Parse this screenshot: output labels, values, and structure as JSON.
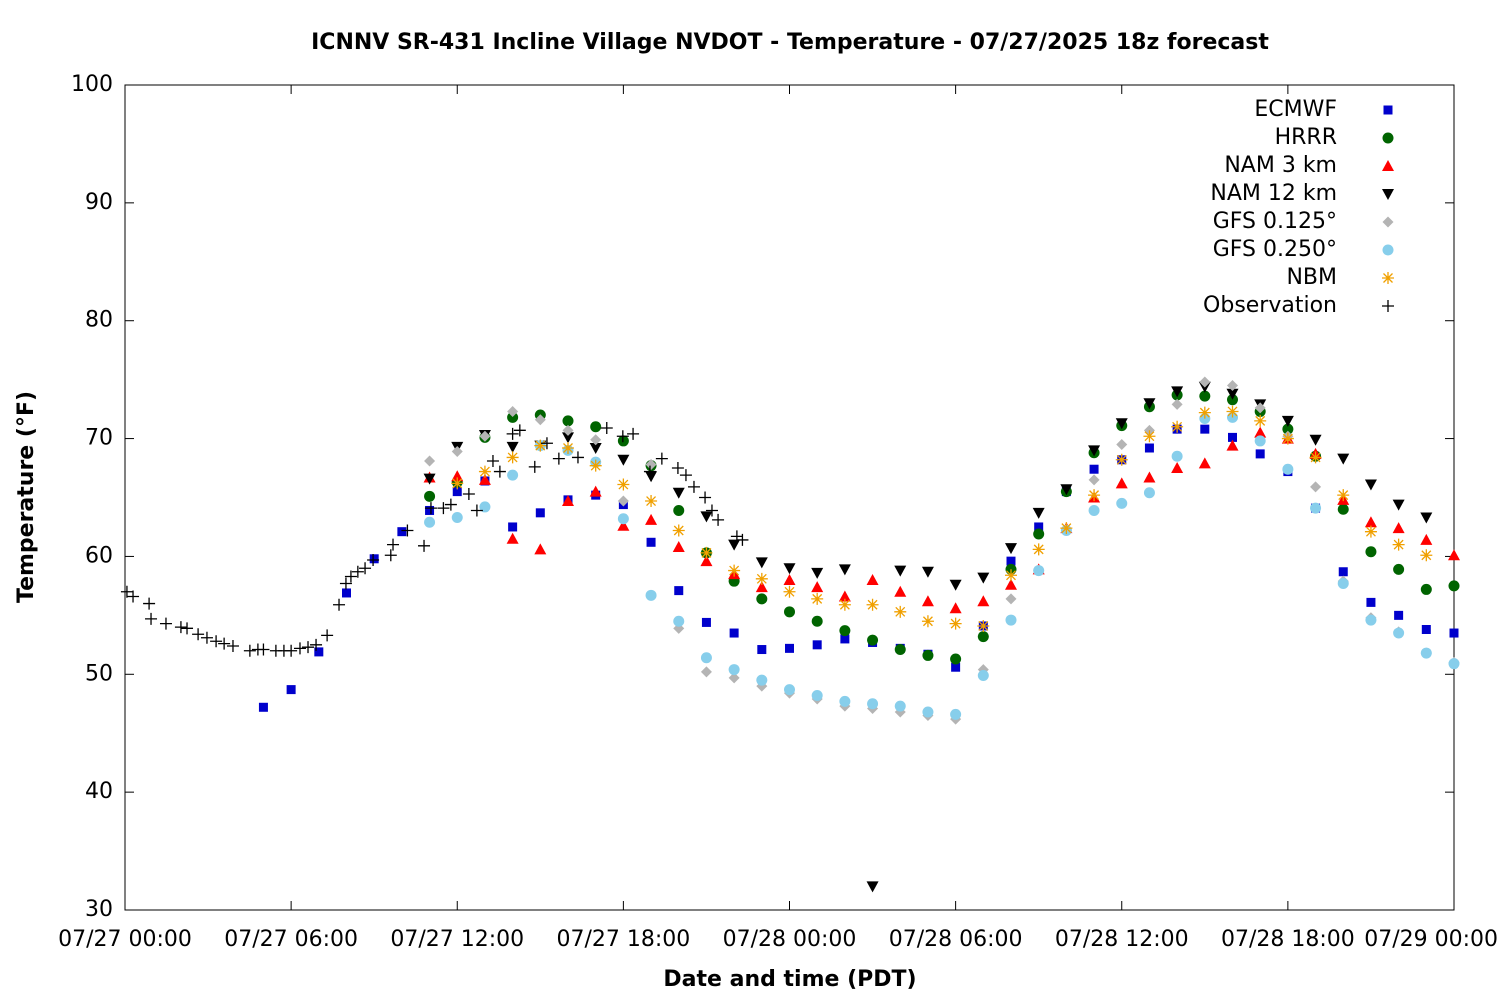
{
  "chart_data": {
    "type": "scatter",
    "title": "ICNNV SR-431 Incline Village NVDOT - Temperature - 07/27/2025 18z forecast",
    "xlabel": "Date and time (PDT)",
    "ylabel": "Temperature (°F)",
    "xlim": [
      0,
      48
    ],
    "xticks": [
      {
        "value": 0,
        "label": "07/27 00:00"
      },
      {
        "value": 6,
        "label": "07/27 06:00"
      },
      {
        "value": 12,
        "label": "07/27 12:00"
      },
      {
        "value": 18,
        "label": "07/27 18:00"
      },
      {
        "value": 24,
        "label": "07/28 00:00"
      },
      {
        "value": 30,
        "label": "07/28 06:00"
      },
      {
        "value": 36,
        "label": "07/28 12:00"
      },
      {
        "value": 42,
        "label": "07/28 18:00"
      },
      {
        "value": 48,
        "label": "07/29 00:00"
      }
    ],
    "ylim": [
      30,
      100
    ],
    "yticks": [
      30,
      40,
      50,
      60,
      70,
      80,
      90,
      100
    ],
    "grid": false,
    "legend": "top-right",
    "series": [
      {
        "name": "ECMWF",
        "color": "#0000cc",
        "marker": "square",
        "x": [
          5,
          6,
          7,
          8,
          9,
          10,
          11,
          12,
          13,
          14,
          15,
          16,
          17,
          18,
          19,
          20,
          21,
          22,
          23,
          24,
          25,
          26,
          27,
          28,
          29,
          30,
          31,
          32,
          33,
          34,
          35,
          36,
          37,
          38,
          39,
          40,
          41,
          42,
          43,
          44,
          45,
          46,
          47,
          48
        ],
        "values": [
          47.2,
          48.7,
          51.9,
          56.9,
          59.8,
          62.1,
          63.9,
          65.5,
          66.4,
          62.5,
          63.7,
          64.8,
          65.2,
          64.4,
          61.2,
          57.1,
          54.4,
          53.5,
          52.1,
          52.2,
          52.5,
          53.0,
          52.7,
          52.2,
          51.7,
          50.6,
          54.1,
          59.6,
          62.5,
          65.5,
          67.4,
          68.2,
          69.2,
          70.8,
          70.8,
          70.1,
          68.7,
          67.2,
          64.1,
          58.7,
          56.1,
          55.0,
          53.8,
          53.5
        ]
      },
      {
        "name": "HRRR",
        "color": "#006400",
        "marker": "circle",
        "x": [
          11,
          12,
          13,
          14,
          15,
          16,
          17,
          18,
          19,
          20,
          21,
          22,
          23,
          24,
          25,
          26,
          27,
          28,
          29,
          30,
          31,
          32,
          33,
          34,
          35,
          36,
          37,
          38,
          39,
          40,
          41,
          42,
          43,
          44,
          45,
          46,
          47,
          48
        ],
        "values": [
          65.1,
          66.3,
          70.1,
          71.8,
          72.0,
          71.5,
          71.0,
          69.8,
          67.7,
          63.9,
          60.3,
          57.9,
          56.4,
          55.3,
          54.5,
          53.7,
          52.9,
          52.1,
          51.6,
          51.3,
          53.2,
          58.9,
          61.9,
          65.5,
          68.8,
          71.1,
          72.7,
          73.7,
          73.6,
          73.3,
          72.3,
          70.8,
          68.5,
          64.0,
          60.4,
          58.9,
          57.2,
          57.5
        ]
      },
      {
        "name": "NAM 3 km",
        "color": "#ff0000",
        "marker": "triangle-up",
        "x": [
          11,
          12,
          13,
          14,
          15,
          16,
          17,
          18,
          19,
          20,
          21,
          22,
          23,
          24,
          25,
          26,
          27,
          28,
          29,
          30,
          31,
          32,
          33,
          34,
          35,
          36,
          37,
          38,
          39,
          40,
          41,
          42,
          43,
          44,
          45,
          46,
          47,
          48
        ],
        "values": [
          66.7,
          66.8,
          66.5,
          61.5,
          60.6,
          64.7,
          65.5,
          62.6,
          63.1,
          60.8,
          59.6,
          58.5,
          57.4,
          58.0,
          57.4,
          56.6,
          58.0,
          57.0,
          56.2,
          55.6,
          56.2,
          57.6,
          58.9,
          62.4,
          65.0,
          66.2,
          66.7,
          67.5,
          67.9,
          69.4,
          70.5,
          70.0,
          68.7,
          64.8,
          62.9,
          62.4,
          61.4,
          60.1
        ]
      },
      {
        "name": "NAM 12 km",
        "color": "#000000",
        "marker": "triangle-down",
        "x": [
          11,
          12,
          13,
          14,
          15,
          16,
          17,
          18,
          19,
          20,
          21,
          22,
          23,
          24,
          25,
          26,
          27,
          28,
          29,
          30,
          31,
          32,
          33,
          34,
          35,
          36,
          37,
          38,
          39,
          40,
          41,
          42,
          43,
          44,
          45,
          46,
          47,
          48
        ],
        "values": [
          66.6,
          69.3,
          70.3,
          69.3,
          69.4,
          70.1,
          69.2,
          68.2,
          66.8,
          65.4,
          63.4,
          61.0,
          59.5,
          59.0,
          58.6,
          58.9,
          32.0,
          58.8,
          58.7,
          57.6,
          58.2,
          60.7,
          63.7,
          65.7,
          69.0,
          71.3,
          73.0,
          74.0,
          74.4,
          73.8,
          72.9,
          71.5,
          69.9,
          68.3,
          66.1,
          64.4,
          63.3,
          null
        ]
      },
      {
        "name": "GFS 0.125°",
        "color": "#b4b4b4",
        "marker": "diamond",
        "x": [
          11,
          12,
          13,
          14,
          15,
          16,
          17,
          18,
          19,
          20,
          21,
          22,
          23,
          24,
          25,
          26,
          27,
          28,
          29,
          30,
          31,
          32,
          33,
          34,
          35,
          36,
          37,
          38,
          39,
          40,
          41,
          42,
          43,
          44,
          45,
          46,
          47,
          48
        ],
        "values": [
          68.1,
          68.9,
          70.2,
          72.3,
          71.6,
          70.7,
          69.9,
          64.7,
          67.8,
          53.9,
          50.2,
          49.7,
          49.0,
          48.4,
          47.9,
          47.3,
          47.1,
          46.8,
          46.5,
          46.2,
          50.4,
          56.4,
          58.8,
          62.3,
          66.5,
          69.5,
          70.7,
          72.9,
          74.8,
          74.5,
          72.6,
          70.2,
          65.9,
          57.9,
          54.8,
          53.6,
          51.8,
          51.0
        ]
      },
      {
        "name": "GFS 0.250°",
        "color": "#87ceeb",
        "marker": "circle",
        "x": [
          11,
          12,
          13,
          14,
          15,
          16,
          17,
          18,
          19,
          20,
          21,
          22,
          23,
          24,
          25,
          26,
          27,
          28,
          29,
          30,
          31,
          32,
          33,
          34,
          35,
          36,
          37,
          38,
          39,
          40,
          41,
          42,
          43,
          44,
          45,
          46,
          47,
          48
        ],
        "values": [
          62.9,
          63.3,
          64.2,
          66.9,
          69.4,
          69.0,
          68.0,
          63.2,
          56.7,
          54.5,
          51.4,
          50.4,
          49.5,
          48.7,
          48.2,
          47.7,
          47.5,
          47.3,
          46.8,
          46.6,
          49.9,
          54.6,
          58.8,
          62.2,
          63.9,
          64.5,
          65.4,
          68.5,
          71.7,
          71.8,
          69.8,
          67.4,
          64.1,
          57.7,
          54.6,
          53.5,
          51.8,
          50.9
        ]
      },
      {
        "name": "NBM",
        "color": "#f0a000",
        "marker": "asterisk",
        "x": [
          11,
          12,
          13,
          14,
          15,
          16,
          17,
          18,
          19,
          20,
          21,
          22,
          23,
          24,
          25,
          26,
          27,
          28,
          29,
          30,
          31,
          32,
          33,
          34,
          35,
          36,
          37,
          38,
          39,
          40,
          41,
          42,
          43,
          44,
          45,
          46,
          47,
          48
        ],
        "values": [
          null,
          66.2,
          67.2,
          68.4,
          69.4,
          69.2,
          67.7,
          66.1,
          64.7,
          62.2,
          60.3,
          58.8,
          58.1,
          57.0,
          56.4,
          55.9,
          55.9,
          55.3,
          54.5,
          54.3,
          54.1,
          58.4,
          60.6,
          62.4,
          65.2,
          68.2,
          70.2,
          71.0,
          72.2,
          72.3,
          71.5,
          70.0,
          68.4,
          65.2,
          62.1,
          61.0,
          60.1,
          null
        ]
      },
      {
        "name": "Observation",
        "color": "#000000",
        "marker": "plus",
        "x": [
          0.07,
          0.29,
          0.87,
          0.94,
          1.48,
          2.02,
          2.24,
          2.64,
          2.96,
          3.29,
          3.58,
          3.9,
          4.51,
          4.8,
          5.0,
          5.45,
          5.74,
          6.0,
          6.32,
          6.61,
          6.9,
          7.3,
          7.73,
          7.98,
          8.16,
          8.41,
          8.67,
          8.96,
          9.6,
          9.68,
          10.2,
          10.8,
          11.05,
          11.5,
          11.77,
          12.42,
          12.71,
          13.29,
          13.54,
          14.0,
          14.26,
          14.8,
          15.24,
          15.67,
          16.36,
          17.4,
          17.98,
          18.35,
          18.96,
          19.39,
          19.97,
          20.26,
          20.55,
          20.95,
          21.2,
          21.42,
          22.1,
          22.3
        ],
        "values": [
          57.0,
          56.6,
          56.0,
          54.7,
          54.3,
          54.0,
          53.9,
          53.4,
          53.1,
          52.8,
          52.6,
          52.4,
          52.0,
          52.1,
          52.1,
          52.0,
          52.0,
          52.0,
          52.2,
          52.3,
          52.5,
          53.3,
          55.9,
          57.7,
          58.3,
          58.7,
          59.0,
          59.7,
          60.1,
          61.0,
          62.2,
          60.9,
          64.1,
          64.1,
          64.4,
          65.3,
          63.9,
          68.1,
          67.2,
          70.4,
          70.7,
          67.6,
          69.6,
          68.3,
          68.4,
          70.9,
          70.2,
          70.4,
          67.2,
          68.3,
          67.5,
          66.9,
          65.9,
          65.0,
          63.9,
          63.1,
          61.7,
          61.4
        ]
      }
    ]
  }
}
